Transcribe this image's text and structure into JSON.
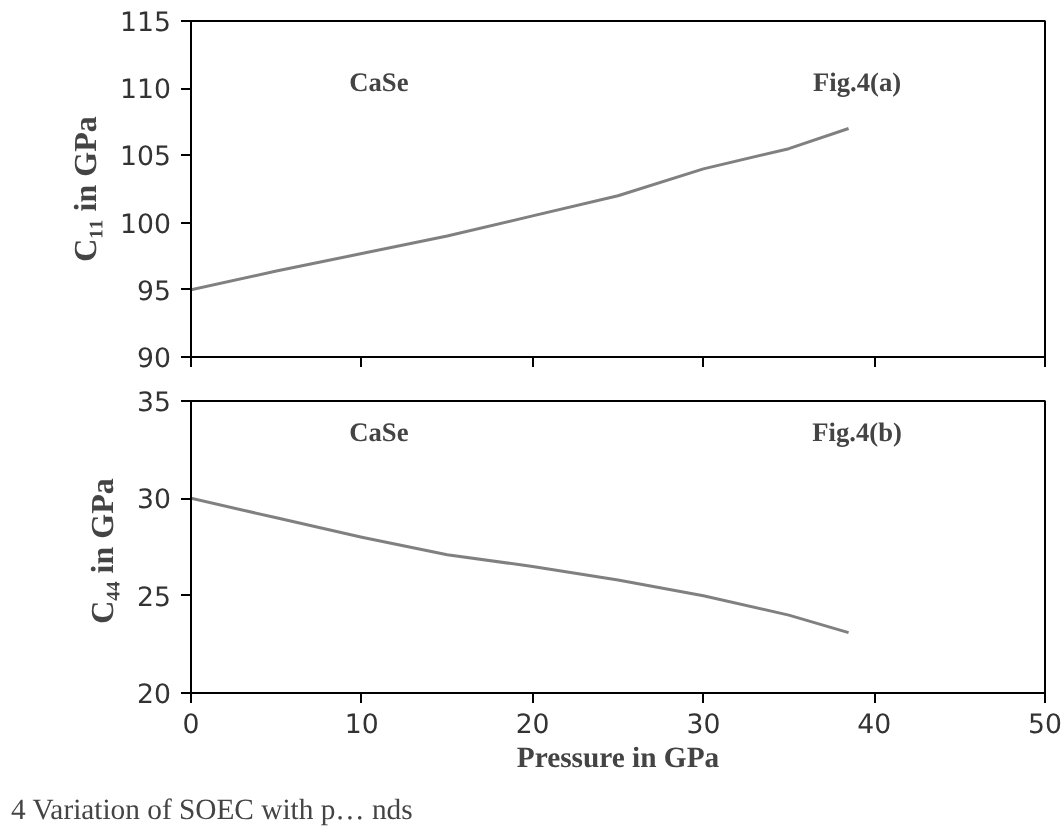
{
  "chart_data": [
    {
      "type": "line",
      "ylabel": "C₁₁ in GPa",
      "annotations": [
        "CaSe",
        "Fig.4(a)"
      ],
      "x": [
        0,
        5,
        10,
        15,
        20,
        25,
        30,
        35,
        38.5
      ],
      "series": [
        {
          "color": "#808080",
          "values": [
            95,
            96.4,
            97.7,
            99,
            100.5,
            102,
            104,
            105.5,
            107
          ]
        }
      ],
      "xlim": [
        0,
        50
      ],
      "xticks": [
        0,
        10,
        20,
        30,
        40,
        50
      ],
      "ylim": [
        90,
        115
      ],
      "yticks": [
        90,
        95,
        100,
        105,
        110,
        115
      ],
      "tick_labels": "y",
      "grid": false,
      "marker": "none",
      "line_style": "solid"
    },
    {
      "type": "line",
      "xlabel": "Pressure in GPa",
      "ylabel": "C₄₄  in GPa",
      "annotations": [
        "CaSe",
        "Fig.4(b)",
        "4 Variation of SOEC with p… nds"
      ],
      "x": [
        0,
        5,
        10,
        15,
        20,
        25,
        30,
        35,
        38.5
      ],
      "series": [
        {
          "color": "#808080",
          "values": [
            30,
            29,
            28,
            27.1,
            26.5,
            25.8,
            25,
            24,
            23.1
          ]
        }
      ],
      "xlim": [
        0,
        50
      ],
      "xticks": [
        0,
        10,
        20,
        30,
        40,
        50
      ],
      "ylim": [
        20,
        35
      ],
      "yticks": [
        20,
        25,
        30,
        35
      ],
      "grid": false,
      "marker": "none",
      "line_style": "solid"
    }
  ]
}
